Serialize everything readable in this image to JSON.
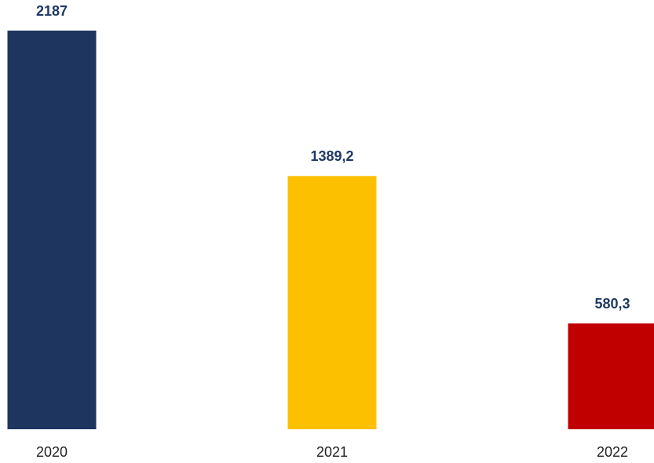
{
  "chart_data": {
    "type": "bar",
    "categories": [
      "2020",
      "2021",
      "2022"
    ],
    "values": [
      2187,
      1389.2,
      580.3
    ],
    "value_labels": [
      "2187",
      "1389,2",
      "580,3"
    ],
    "colors": [
      "#1d355f",
      "#fdc000",
      "#c00000"
    ]
  }
}
